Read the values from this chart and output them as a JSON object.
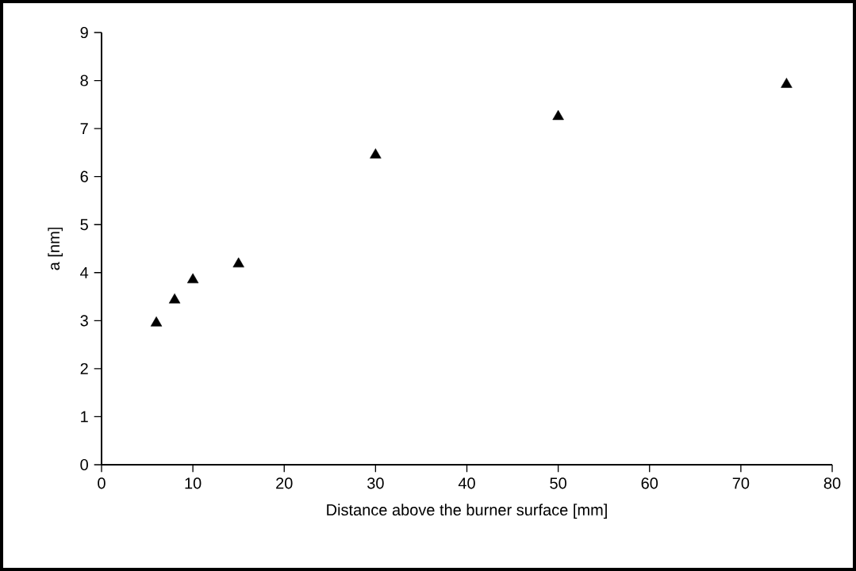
{
  "chart_data": {
    "type": "scatter",
    "xlabel": "Distance above the burner surface [mm]",
    "ylabel": "a [nm]",
    "x": [
      6,
      8,
      10,
      15,
      30,
      50,
      75
    ],
    "values": [
      2.95,
      3.43,
      3.85,
      4.18,
      6.45,
      7.25,
      7.92
    ],
    "color": "#000000",
    "marker": "triangle",
    "xlim": [
      0,
      80
    ],
    "xticks": [
      0,
      10,
      20,
      30,
      40,
      50,
      60,
      70,
      80
    ],
    "ylim": [
      0,
      9
    ],
    "yticks": [
      0,
      1,
      2,
      3,
      4,
      5,
      6,
      7,
      8,
      9
    ]
  }
}
